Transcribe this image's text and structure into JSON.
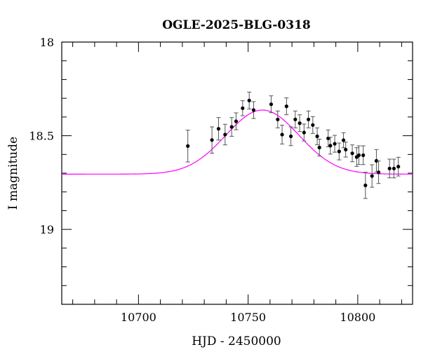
{
  "chart_data": {
    "type": "scatter",
    "title": "OGLE-2025-BLG-0318",
    "xlabel": "HJD - 2450000",
    "ylabel": "I magnitude",
    "xlim": [
      10665,
      10825
    ],
    "ylim": [
      19.4,
      18.0
    ],
    "y_inverted": true,
    "x_major_ticks": [
      10700,
      10750,
      10800
    ],
    "y_major_ticks": [
      18,
      18.5,
      19
    ],
    "y_tick_labels": [
      "18",
      "18.5",
      "19"
    ],
    "grid": false,
    "colors": {
      "data": "#000000",
      "model": "#ff00ff"
    },
    "series": [
      {
        "type": "scatter_errorbar",
        "points": [
          {
            "x": 10722.5,
            "y": 18.555,
            "err": 0.085
          },
          {
            "x": 10733.5,
            "y": 18.523,
            "err": 0.07
          },
          {
            "x": 10736.5,
            "y": 18.463,
            "err": 0.06
          },
          {
            "x": 10739.5,
            "y": 18.494,
            "err": 0.055
          },
          {
            "x": 10742.5,
            "y": 18.453,
            "err": 0.05
          },
          {
            "x": 10744.5,
            "y": 18.423,
            "err": 0.045
          },
          {
            "x": 10747.5,
            "y": 18.353,
            "err": 0.04
          },
          {
            "x": 10750.5,
            "y": 18.312,
            "err": 0.045
          },
          {
            "x": 10752.5,
            "y": 18.363,
            "err": 0.045
          },
          {
            "x": 10760.5,
            "y": 18.332,
            "err": 0.045
          },
          {
            "x": 10763.5,
            "y": 18.413,
            "err": 0.045
          },
          {
            "x": 10765.5,
            "y": 18.494,
            "err": 0.05
          },
          {
            "x": 10767.5,
            "y": 18.343,
            "err": 0.045
          },
          {
            "x": 10769.5,
            "y": 18.503,
            "err": 0.05
          },
          {
            "x": 10771.5,
            "y": 18.413,
            "err": 0.045
          },
          {
            "x": 10773.5,
            "y": 18.433,
            "err": 0.045
          },
          {
            "x": 10775.5,
            "y": 18.483,
            "err": 0.045
          },
          {
            "x": 10777.5,
            "y": 18.413,
            "err": 0.045
          },
          {
            "x": 10779.5,
            "y": 18.443,
            "err": 0.045
          },
          {
            "x": 10781.5,
            "y": 18.503,
            "err": 0.045
          },
          {
            "x": 10782.5,
            "y": 18.563,
            "err": 0.045
          },
          {
            "x": 10786.5,
            "y": 18.514,
            "err": 0.045
          },
          {
            "x": 10787.5,
            "y": 18.553,
            "err": 0.045
          },
          {
            "x": 10789.5,
            "y": 18.543,
            "err": 0.045
          },
          {
            "x": 10791.5,
            "y": 18.584,
            "err": 0.045
          },
          {
            "x": 10793.5,
            "y": 18.524,
            "err": 0.04
          },
          {
            "x": 10794.5,
            "y": 18.574,
            "err": 0.04
          },
          {
            "x": 10797.5,
            "y": 18.594,
            "err": 0.045
          },
          {
            "x": 10799.5,
            "y": 18.614,
            "err": 0.05
          },
          {
            "x": 10800.5,
            "y": 18.604,
            "err": 0.05
          },
          {
            "x": 10802.5,
            "y": 18.604,
            "err": 0.05
          },
          {
            "x": 10803.5,
            "y": 18.765,
            "err": 0.07
          },
          {
            "x": 10806.5,
            "y": 18.715,
            "err": 0.06
          },
          {
            "x": 10808.5,
            "y": 18.634,
            "err": 0.06
          },
          {
            "x": 10809.5,
            "y": 18.695,
            "err": 0.06
          },
          {
            "x": 10814.5,
            "y": 18.675,
            "err": 0.05
          },
          {
            "x": 10816.5,
            "y": 18.675,
            "err": 0.05
          },
          {
            "x": 10818.5,
            "y": 18.665,
            "err": 0.05
          }
        ]
      },
      {
        "type": "line",
        "model": {
          "t0": 10756.5,
          "sigma": 16.7,
          "baseline": 18.705,
          "peak": 18.363,
          "x_range": [
            10665,
            10825
          ]
        }
      }
    ]
  }
}
